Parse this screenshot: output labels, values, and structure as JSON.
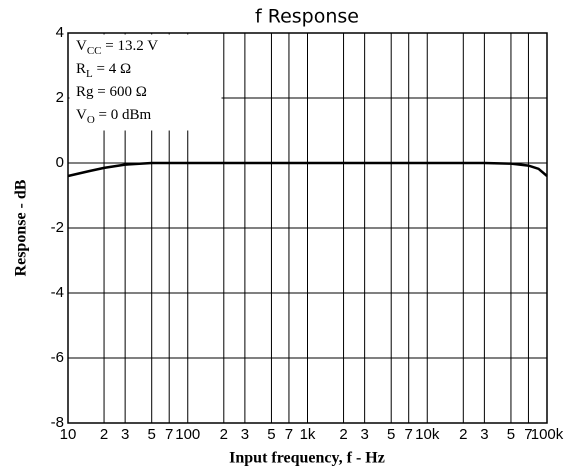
{
  "chart_data": {
    "type": "line",
    "title": "f Response",
    "x_label": "Input frequency, f - Hz",
    "y_label": "Response - dB",
    "xscale": "log",
    "grid": true,
    "xlim": [
      10,
      100000
    ],
    "ylim": [
      -8,
      4
    ],
    "yticks": [
      -8,
      -6,
      -4,
      -2,
      0,
      2,
      4
    ],
    "xticks": [
      10,
      {
        "value": 20,
        "label": "2"
      },
      {
        "value": 30,
        "label": "3"
      },
      {
        "value": 50,
        "label": "5"
      },
      {
        "value": 70,
        "label": "7"
      },
      100,
      {
        "value": 200,
        "label": "2"
      },
      {
        "value": 300,
        "label": "3"
      },
      {
        "value": 500,
        "label": "5"
      },
      {
        "value": 700,
        "label": "7"
      },
      {
        "value": 1000,
        "label": "1k"
      },
      {
        "value": 2000,
        "label": "2"
      },
      {
        "value": 3000,
        "label": "3"
      },
      {
        "value": 5000,
        "label": "5"
      },
      {
        "value": 7000,
        "label": "7"
      },
      {
        "value": 10000,
        "label": "10k"
      },
      {
        "value": 20000,
        "label": "2"
      },
      {
        "value": 30000,
        "label": "3"
      },
      {
        "value": 50000,
        "label": "5"
      },
      {
        "value": 70000,
        "label": "7"
      },
      {
        "value": 100000,
        "label": "100k"
      }
    ],
    "annotations": [
      {
        "main": "V",
        "sub": "CC",
        "rest": " = 13.2 V"
      },
      {
        "main": "R",
        "sub": "L",
        "rest": " = 4 Ω"
      },
      {
        "main": "Rg = 600 Ω"
      },
      {
        "main": "V",
        "sub": "O",
        "rest": " = 0 dBm"
      }
    ],
    "series": [
      {
        "color": "#000000",
        "x": [
          10,
          15,
          20,
          30,
          50,
          100,
          1000,
          10000,
          30000,
          50000,
          70000,
          85000,
          100000
        ],
        "values": [
          -0.4,
          -0.25,
          -0.15,
          -0.05,
          0,
          0,
          0,
          0,
          0,
          -0.02,
          -0.08,
          -0.18,
          -0.4
        ]
      }
    ]
  }
}
